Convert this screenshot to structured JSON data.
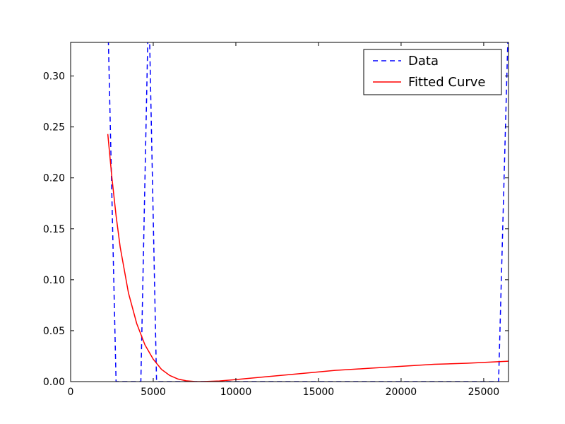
{
  "chart_data": {
    "type": "line",
    "title": "",
    "xlabel": "",
    "ylabel": "",
    "xlim": [
      0,
      26500
    ],
    "ylim": [
      0,
      0.333
    ],
    "grid": false,
    "legend_position": "top-right",
    "x_ticks": [
      {
        "value": 0,
        "label": "0"
      },
      {
        "value": 5000,
        "label": "5000"
      },
      {
        "value": 10000,
        "label": "10000"
      },
      {
        "value": 15000,
        "label": "15000"
      },
      {
        "value": 20000,
        "label": "20000"
      },
      {
        "value": 25000,
        "label": "25000"
      }
    ],
    "y_ticks": [
      {
        "value": 0,
        "label": "0.00"
      },
      {
        "value": 0.05,
        "label": "0.05"
      },
      {
        "value": 0.1,
        "label": "0.10"
      },
      {
        "value": 0.15,
        "label": "0.15"
      },
      {
        "value": 0.2,
        "label": "0.20"
      },
      {
        "value": 0.25,
        "label": "0.25"
      },
      {
        "value": 0.3,
        "label": "0.30"
      }
    ],
    "series": [
      {
        "name": "Data",
        "style": "dashed",
        "color": "#0000ff",
        "points": [
          [
            2250,
            0.36
          ],
          [
            2750,
            0.0
          ],
          [
            4250,
            0.0
          ],
          [
            4700,
            0.36
          ],
          [
            4750,
            0.36
          ],
          [
            5200,
            0.0
          ],
          [
            25900,
            0.0
          ],
          [
            26500,
            0.36
          ]
        ]
      },
      {
        "name": "Fitted Curve",
        "style": "solid",
        "color": "#ff0000",
        "points": [
          [
            2250,
            0.243
          ],
          [
            2500,
            0.2
          ],
          [
            2750,
            0.163
          ],
          [
            3000,
            0.132
          ],
          [
            3500,
            0.087
          ],
          [
            4000,
            0.057
          ],
          [
            4500,
            0.036
          ],
          [
            5000,
            0.022
          ],
          [
            5500,
            0.012
          ],
          [
            6000,
            0.006
          ],
          [
            6500,
            0.0025
          ],
          [
            7000,
            0.0008
          ],
          [
            7500,
            0.0001
          ],
          [
            8000,
            0.0
          ],
          [
            9000,
            0.0006
          ],
          [
            10000,
            0.002
          ],
          [
            12000,
            0.005
          ],
          [
            14000,
            0.008
          ],
          [
            16000,
            0.011
          ],
          [
            18000,
            0.013
          ],
          [
            20000,
            0.015
          ],
          [
            22000,
            0.017
          ],
          [
            24000,
            0.018
          ],
          [
            26500,
            0.02
          ]
        ]
      }
    ]
  }
}
